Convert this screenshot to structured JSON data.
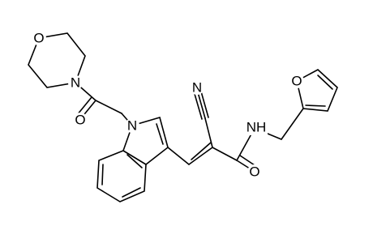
{
  "atoms": [
    {
      "label": "O"
    },
    {
      "label": "N"
    },
    {
      "label": "O"
    },
    {
      "label": "N"
    },
    {
      "label": "N"
    },
    {
      "label": "NH"
    },
    {
      "label": "O"
    },
    {
      "label": "O"
    }
  ]
}
